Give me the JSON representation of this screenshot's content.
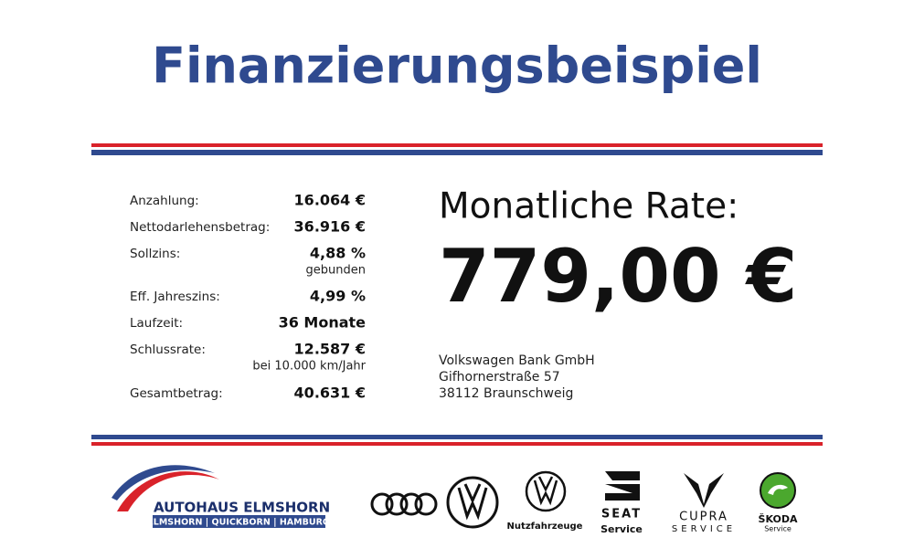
{
  "header": {
    "title": "Finanzierungsbeispiel"
  },
  "table": {
    "rows": [
      {
        "label": "Anzahlung:",
        "value": "16.064 €"
      },
      {
        "label": "Nettodarlehensbetrag:",
        "value": "36.916 €"
      },
      {
        "label": "Sollzins:",
        "value": "4,88 %",
        "note": "gebunden"
      },
      {
        "label": "Eff. Jahreszins:",
        "value": "4,99 %"
      },
      {
        "label": "Laufzeit:",
        "value": "36 Monate"
      },
      {
        "label": "Schlussrate:",
        "value": "12.587 €",
        "note": "bei 10.000 km/Jahr"
      },
      {
        "label": "Gesamtbetrag:",
        "value": "40.631 €"
      }
    ]
  },
  "rate": {
    "label": "Monatliche Rate:",
    "amount": "779,00 €"
  },
  "bank": {
    "lines": [
      "Volkswagen Bank GmbH",
      "Gifhornerstraße 57",
      "38112 Braunschweig"
    ]
  },
  "logos": {
    "dealer": {
      "name": "AUTOHAUS ELMSHORN",
      "locations": "ELMSHORN | QUICKBORN | HAMBURG"
    },
    "vw_commercial": "Nutzfahrzeuge",
    "seat": {
      "name": "SEAT",
      "sub": "Service"
    },
    "cupra": {
      "name": "CUPRA",
      "sub": "SERVICE"
    },
    "skoda": {
      "name": "ŠKODA",
      "sub": "Service"
    }
  }
}
